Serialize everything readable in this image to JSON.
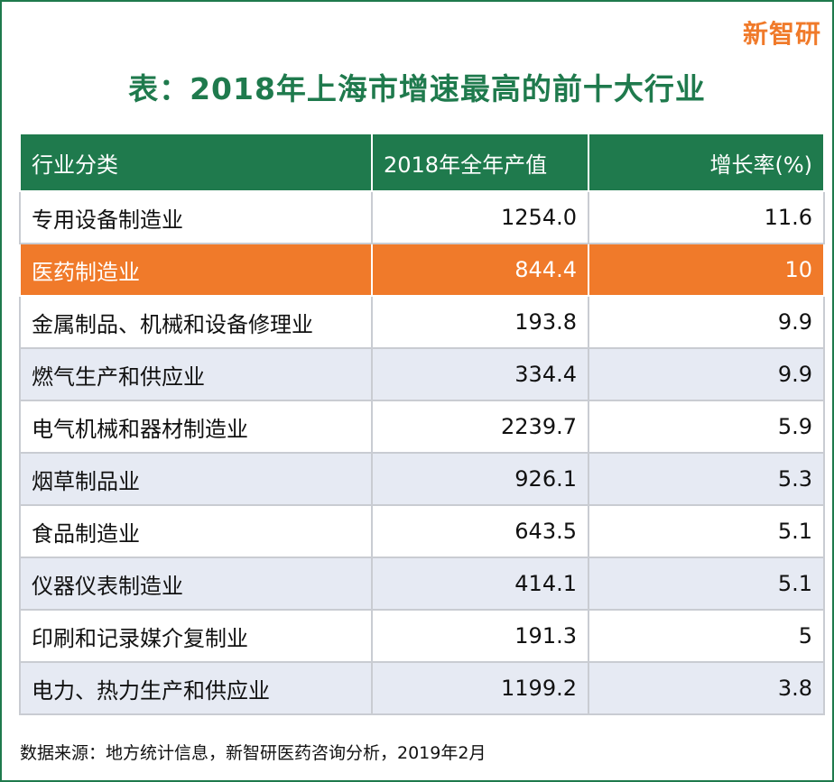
{
  "brand": "新智研",
  "title": "表：2018年上海市增速最高的前十大行业",
  "colors": {
    "primary_green": "#1f7a4d",
    "highlight_orange": "#f07a2a",
    "alt_row": "#e6eaf3"
  },
  "table": {
    "headers": [
      "行业分类",
      "2018年全年产值",
      "增长率(%)"
    ],
    "rows": [
      {
        "name": "专用设备制造业",
        "value": "1254.0",
        "rate": "11.6"
      },
      {
        "name": "医药制造业",
        "value": "844.4",
        "rate": "10"
      },
      {
        "name": "金属制品、机械和设备修理业",
        "value": "193.8",
        "rate": "9.9"
      },
      {
        "name": "燃气生产和供应业",
        "value": "334.4",
        "rate": "9.9"
      },
      {
        "name": "电气机械和器材制造业",
        "value": "2239.7",
        "rate": "5.9"
      },
      {
        "name": "烟草制品业",
        "value": "926.1",
        "rate": "5.3"
      },
      {
        "name": "食品制造业",
        "value": "643.5",
        "rate": "5.1"
      },
      {
        "name": "仪器仪表制造业",
        "value": "414.1",
        "rate": "5.1"
      },
      {
        "name": "印刷和记录媒介复制业",
        "value": "191.3",
        "rate": "5"
      },
      {
        "name": "电力、热力生产和供应业",
        "value": "1199.2",
        "rate": "3.8"
      }
    ]
  },
  "source": "数据来源：地方统计信息，新智研医药咨询分析，2019年2月"
}
